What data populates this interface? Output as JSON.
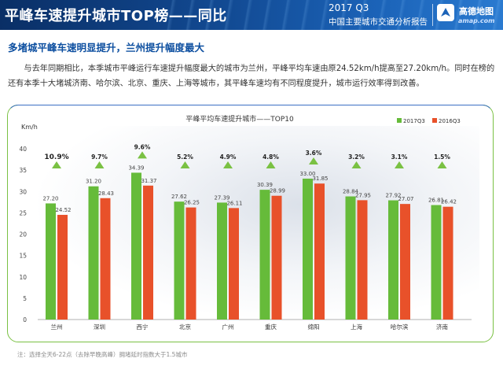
{
  "header": {
    "title": "平峰车速提升城市TOP榜——同比",
    "report_line1": "2017 Q3",
    "report_line2": "中国主要城市交通分析报告",
    "logo_text": "高德地图",
    "logo_site": "amap.com"
  },
  "subtitle": "多堵城平峰车速明显提升，兰州提升幅度最大",
  "paragraph": "与去年同期相比，本季城市平峰运行车速提升幅度最大的城市为兰州，平峰平均车速由原24.52km/h提高至27.20km/h。同时在榜的还有本季十大堵城济南、哈尔滨、北京、重庆、上海等城市，其平峰车速均有不同程度提升，城市运行效率得到改善。",
  "footnote": "注：选择全天6-22点（去除早晚高峰）拥堵延时指数大于1.5城市",
  "colors": {
    "series_2017": "#66bb3a",
    "series_2016": "#e8512a",
    "triangle": "#7ac143",
    "frame": "#7ac143"
  },
  "chart_data": {
    "type": "bar",
    "title": "平峰平均车速提升城市——TOP10",
    "ylabel": "Km/h",
    "ylim": [
      0,
      40
    ],
    "yticks": [
      0,
      5,
      10,
      15,
      20,
      25,
      30,
      35,
      40
    ],
    "legend_position": "top-right",
    "categories": [
      "兰州",
      "深圳",
      "西宁",
      "北京",
      "广州",
      "重庆",
      "绵阳",
      "上海",
      "哈尔滨",
      "济南"
    ],
    "series": [
      {
        "name": "2017Q3",
        "values": [
          27.2,
          31.2,
          34.39,
          27.62,
          27.39,
          30.39,
          33.0,
          28.84,
          27.92,
          26.81
        ]
      },
      {
        "name": "2016Q3",
        "values": [
          24.52,
          28.43,
          31.37,
          26.25,
          26.11,
          28.99,
          31.85,
          27.95,
          27.07,
          26.42
        ]
      }
    ],
    "value_labels": [
      [
        "27.20",
        "31.20",
        "34.39",
        "27.62",
        "27.39",
        "30.39",
        "33.00",
        "28.84",
        "27.92",
        "26.81"
      ],
      [
        "24.52",
        "28.43",
        "31.37",
        "26.25",
        "26.11",
        "28.99",
        "31.85",
        "27.95",
        "27.07",
        "26.42"
      ]
    ],
    "growth_labels": [
      "10.9%",
      "9.7%",
      "9.6%",
      "5.2%",
      "4.9%",
      "4.8%",
      "3.6%",
      "3.2%",
      "3.1%",
      "1.5%"
    ]
  }
}
